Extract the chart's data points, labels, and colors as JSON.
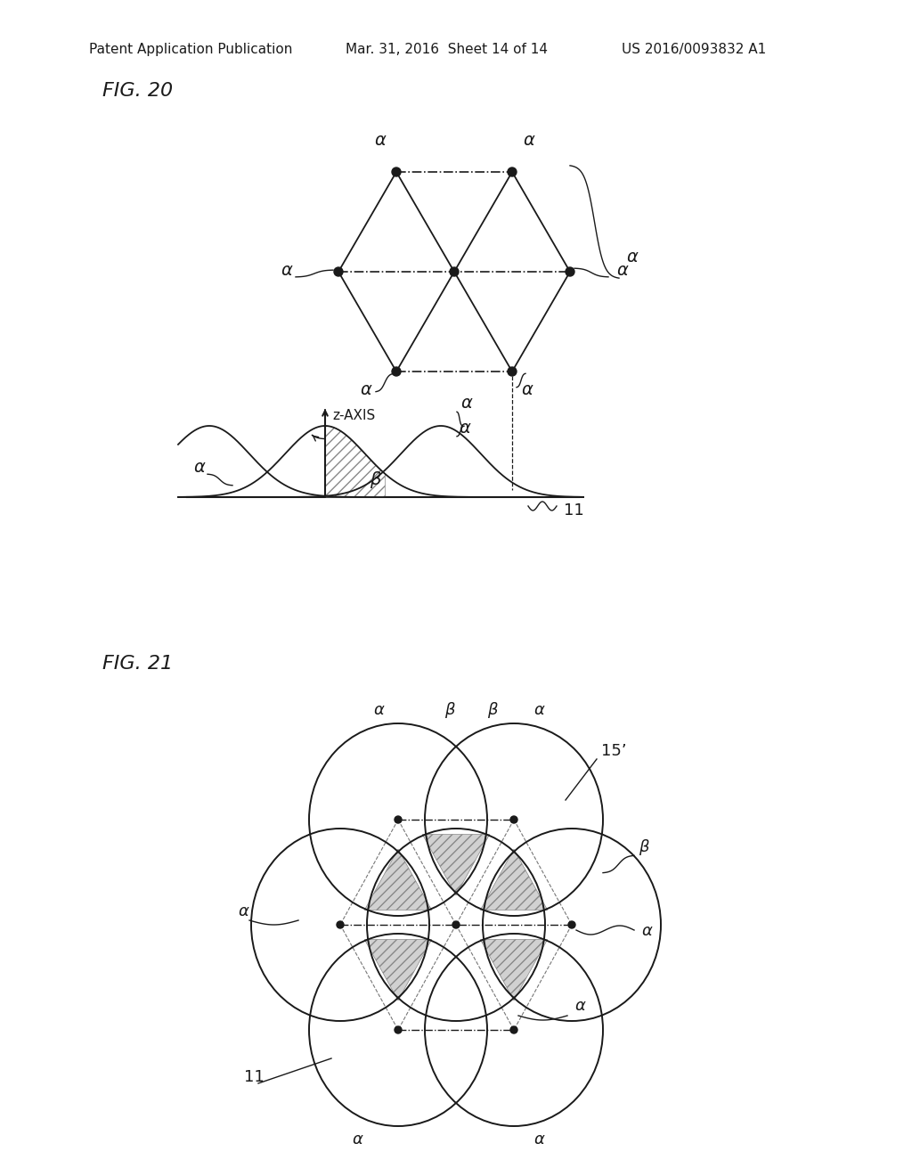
{
  "fig_title": "Patent Application Publication",
  "fig_date": "Mar. 31, 2016  Sheet 14 of 14",
  "fig_patent": "US 2016/0093832 A1",
  "fig20_label": "FIG. 20",
  "fig21_label": "FIG. 21",
  "bg_color": "#ffffff",
  "line_color": "#1a1a1a",
  "dot_color": "#1a1a1a",
  "label_alpha": "α",
  "label_beta": "β",
  "label_11": "11",
  "label_15prime": "15’",
  "label_zaxis": "z-AXIS"
}
